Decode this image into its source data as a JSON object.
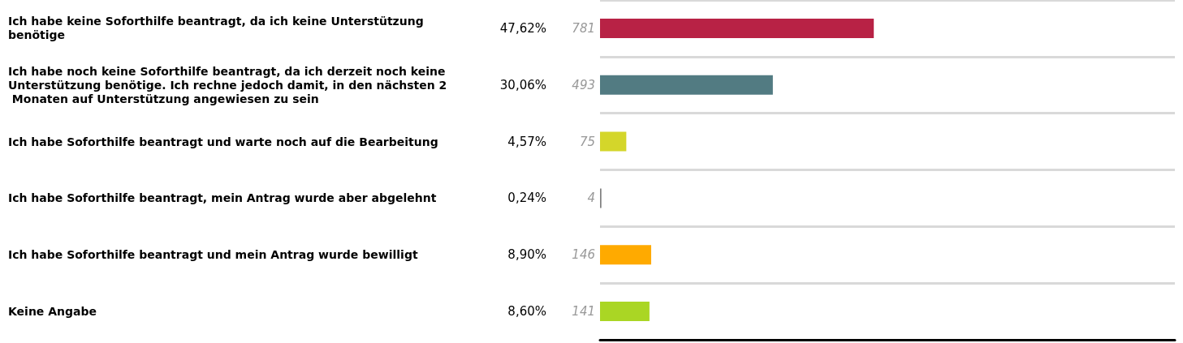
{
  "chart_data": {
    "type": "bar",
    "orientation": "horizontal",
    "categories": [
      "Ich habe keine Soforthilfe beantragt, da ich keine Unterstützung benötige",
      "Ich habe noch keine Soforthilfe beantragt, da ich derzeit noch keine Unterstützung benötige. Ich rechne jedoch damit, in den nächsten 2 Monaten auf Unterstützung angewiesen zu sein",
      "Ich habe Soforthilfe beantragt und warte noch auf die Bearbeitung",
      "Ich habe Soforthilfe beantragt, mein Antrag wurde aber abgelehnt",
      "Ich habe Soforthilfe beantragt und mein Antrag wurde bewilligt",
      "Keine Angabe"
    ],
    "values": [
      47.62,
      30.06,
      4.57,
      0.24,
      8.9,
      8.6
    ],
    "colors": [
      "#b82245",
      "#527b82",
      "#d4d62a",
      "#7f7f7f",
      "#ffaa00",
      "#aad624"
    ],
    "value_labels": [
      "47,62%",
      "30,06%",
      "4,57%",
      "0,24%",
      "8,90%",
      "8,60%"
    ],
    "annotations": [
      "781",
      "493",
      "75",
      "4",
      "146",
      "141"
    ],
    "tick_labels": "y",
    "grid": "y"
  }
}
